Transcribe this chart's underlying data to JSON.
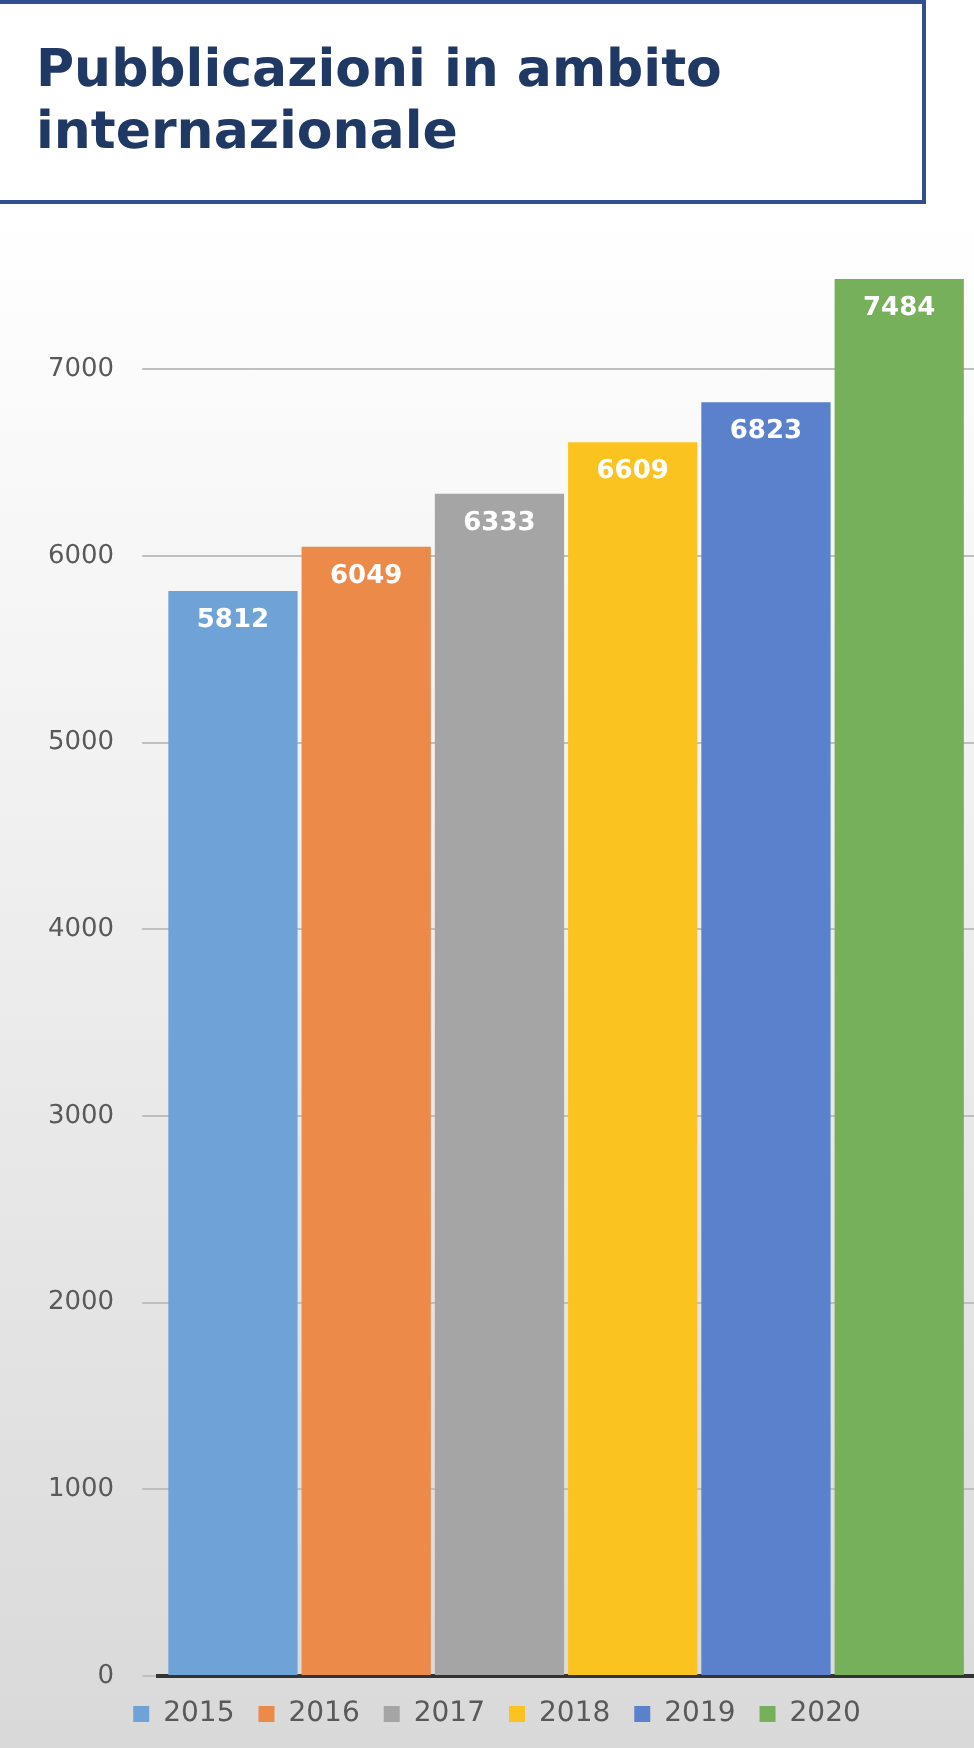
{
  "chart_data": {
    "type": "bar",
    "title": "Pubblicazioni in ambito internazionale",
    "categories": [
      null
    ],
    "series": [
      {
        "name": "2015",
        "color": "#6fa3d8",
        "values": [
          5812
        ]
      },
      {
        "name": "2016",
        "color": "#ec8a4a",
        "values": [
          6049
        ]
      },
      {
        "name": "2017",
        "color": "#a5a5a5",
        "values": [
          6333
        ]
      },
      {
        "name": "2018",
        "color": "#fbc31f",
        "values": [
          6609
        ]
      },
      {
        "name": "2019",
        "color": "#5b80cc",
        "values": [
          6823
        ]
      },
      {
        "name": "2020",
        "color": "#76b05a",
        "values": [
          7484
        ]
      }
    ],
    "ylim": [
      0,
      7500
    ],
    "yticks": [
      0,
      1000,
      2000,
      3000,
      4000,
      5000,
      6000,
      7000
    ],
    "grid": "y",
    "legend": "bottom",
    "data_labels": true
  }
}
